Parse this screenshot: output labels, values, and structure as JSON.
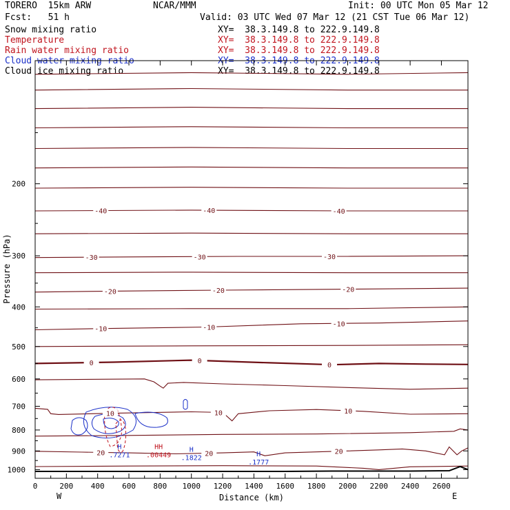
{
  "header": {
    "model": "TORERO  15km ARW",
    "center": "NCAR/MMM",
    "init": "Init: 00 UTC Mon 05 Mar 12",
    "fcst": "Fcst:   51 h",
    "valid": "Valid: 03 UTC Wed 07 Mar 12 (21 CST Tue 06 Mar 12)"
  },
  "legend": [
    {
      "label": "Snow mixing ratio",
      "xy": "XY=  38.3.149.8 to 222.9.149.8",
      "color": "#000000"
    },
    {
      "label": "Temperature",
      "xy": "XY=  38.3.149.8 to 222.9.149.8",
      "color": "#c0141e"
    },
    {
      "label": "Rain water mixing ratio",
      "xy": "XY=  38.3.149.8 to 222.9.149.8",
      "color": "#c0141e"
    },
    {
      "label": "Cloud water mixing ratio",
      "xy": "XY=  38.3.149.8 to 222.9.149.8",
      "color": "#1a2fc8"
    },
    {
      "label": "Cloud ice mixing ratio",
      "xy": "XY=  38.3.149.8 to 222.9.149.8",
      "color": "#000000"
    }
  ],
  "chart_data": {
    "type": "line",
    "xlabel": "Distance (km)",
    "ylabel": "Pressure (hPa)",
    "xlim": [
      0,
      2770
    ],
    "ylim": [
      1050,
      100
    ],
    "y_scale": "log",
    "x_ticks": [
      0,
      200,
      400,
      600,
      800,
      1000,
      1200,
      1400,
      1600,
      1800,
      2000,
      2200,
      2400,
      2600
    ],
    "y_ticks": [
      200,
      300,
      400,
      500,
      600,
      700,
      800,
      900,
      1000
    ],
    "x_end_labels": {
      "left": "W",
      "right": "E"
    },
    "grid": false,
    "isotherms": [
      {
        "label": "",
        "x": [
          0,
          1000,
          2000,
          2770
        ],
        "p": [
          108,
          107,
          108,
          107
        ]
      },
      {
        "label": "",
        "x": [
          0,
          1000,
          2000,
          2770
        ],
        "p": [
          118,
          117,
          118,
          118
        ]
      },
      {
        "label": "",
        "x": [
          0,
          1000,
          2000,
          2770
        ],
        "p": [
          131,
          130,
          131,
          131
        ]
      },
      {
        "label": "",
        "x": [
          0,
          1000,
          2000,
          2770
        ],
        "p": [
          146,
          145,
          146,
          146
        ]
      },
      {
        "label": "",
        "x": [
          0,
          1000,
          2000,
          2770
        ],
        "p": [
          164,
          163,
          164,
          164
        ]
      },
      {
        "label": "",
        "x": [
          0,
          1000,
          2000,
          2770
        ],
        "p": [
          183,
          182,
          183,
          183
        ]
      },
      {
        "label": "",
        "x": [
          0,
          1000,
          2000,
          2770
        ],
        "p": [
          205,
          204,
          205,
          205
        ]
      },
      {
        "label": "-40",
        "x": [
          0,
          1000,
          2000,
          2770
        ],
        "p": [
          233,
          232,
          233,
          233
        ]
      },
      {
        "label": "",
        "x": [
          0,
          1000,
          2000,
          2770
        ],
        "p": [
          265,
          264,
          265,
          265
        ]
      },
      {
        "label": "-30",
        "x": [
          0,
          600,
          1300,
          2000,
          2770
        ],
        "p": [
          303,
          302,
          301,
          301,
          300
        ]
      },
      {
        "label": "",
        "x": [
          0,
          1000,
          2000,
          2770
        ],
        "p": [
          330,
          329,
          330,
          330
        ]
      },
      {
        "label": "-20",
        "x": [
          0,
          500,
          1200,
          2000,
          2770
        ],
        "p": [
          368,
          366,
          364,
          362,
          360
        ]
      },
      {
        "label": "",
        "x": [
          0,
          1000,
          2000,
          2770
        ],
        "p": [
          405,
          404,
          404,
          400
        ]
      },
      {
        "label": "-10",
        "x": [
          0,
          400,
          1100,
          1700,
          2200,
          2770
        ],
        "p": [
          455,
          452,
          448,
          440,
          438,
          433
        ]
      },
      {
        "label": "",
        "x": [
          0,
          1000,
          2000,
          2770
        ],
        "p": [
          500,
          498,
          497,
          495
        ]
      },
      {
        "label": "0",
        "x": [
          0,
          500,
          1000,
          1500,
          1900,
          2200,
          2500,
          2770
        ],
        "p": [
          550,
          546,
          540,
          548,
          554,
          550,
          552,
          553
        ]
      },
      {
        "label": "",
        "x": [
          0,
          700,
          760,
          800,
          820,
          850,
          950,
          1200,
          1600,
          2000,
          2400,
          2770
        ],
        "p": [
          603,
          600,
          610,
          625,
          632,
          615,
          612,
          617,
          623,
          630,
          636,
          632
        ]
      },
      {
        "label": "10",
        "x": [
          0,
          80,
          100,
          150,
          500,
          1000,
          1200,
          1260,
          1300,
          1500,
          1800,
          2100,
          2400,
          2770
        ],
        "p": [
          708,
          712,
          730,
          733,
          728,
          722,
          725,
          760,
          730,
          718,
          713,
          720,
          732,
          730
        ]
      },
      {
        "label": "",
        "x": [
          0,
          600,
          1200,
          1800,
          2400,
          2680,
          2720,
          2770
        ],
        "p": [
          828,
          825,
          820,
          818,
          812,
          806,
          795,
          800
        ]
      },
      {
        "label": "20",
        "x": [
          0,
          300,
          600,
          900,
          1200,
          1400,
          1470,
          1600,
          1800,
          2000,
          2200,
          2350,
          2500,
          2620,
          2650,
          2700,
          2730,
          2770
        ],
        "p": [
          902,
          906,
          910,
          915,
          910,
          905,
          925,
          910,
          905,
          900,
          895,
          890,
          900,
          920,
          880,
          920,
          900,
          885
        ]
      },
      {
        "label": "",
        "x": [
          0,
          600,
          1200,
          1800,
          2100,
          2200,
          2400,
          2770
        ],
        "p": [
          983,
          980,
          978,
          980,
          992,
          1000,
          984,
          980
        ]
      }
    ],
    "terrain": {
      "x": [
        0,
        800,
        1600,
        1900,
        2400,
        2650,
        2720,
        2770
      ],
      "p": [
        1010,
        1010,
        1010,
        1008,
        1008,
        1006,
        983,
        1000
      ]
    },
    "maxima": [
      {
        "label": "H",
        "value": ".7271",
        "x": 540,
        "p": 890,
        "color": "#1a2fc8"
      },
      {
        "label": "HH",
        "value": ".00449",
        "x": 790,
        "p": 890,
        "color": "#c0141e"
      },
      {
        "label": "H",
        "value": ".1822",
        "x": 1000,
        "p": 905,
        "color": "#1a2fc8"
      },
      {
        "label": "H",
        "value": ".1777",
        "x": 1430,
        "p": 928,
        "color": "#1a2fc8"
      }
    ]
  }
}
